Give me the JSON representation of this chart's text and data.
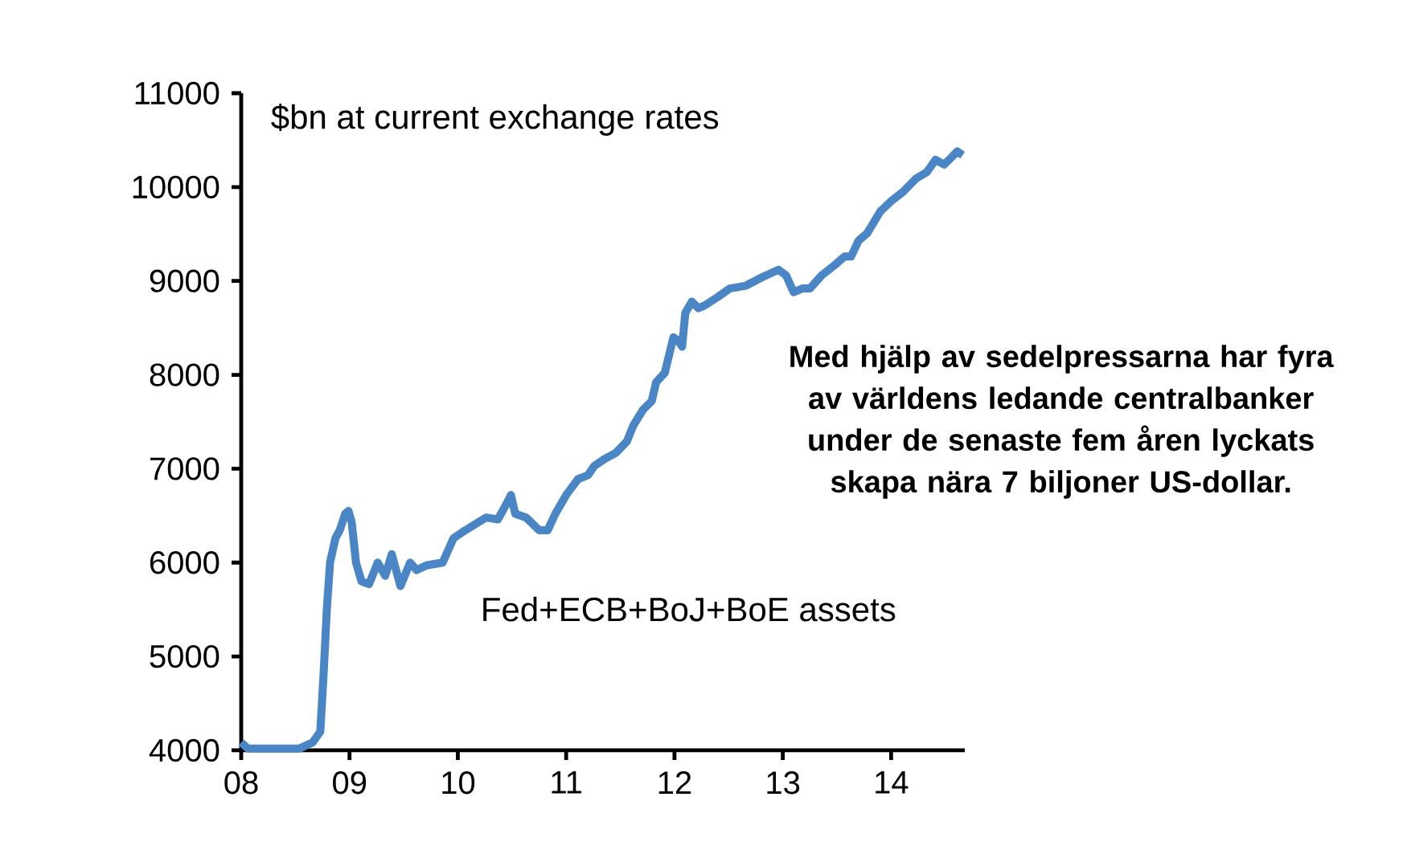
{
  "chart_data": {
    "type": "line",
    "annotations": [
      "$bn at current exchange rates",
      "Fed+ECB+BoJ+BoE assets",
      "Med hjälp av sedelpressarna har fyra av världens ledande centralbanker under de senaste fem åren lyckats skapa nära 7 biljoner US-dollar."
    ],
    "x": [
      2008.0,
      2008.06,
      2008.24,
      2008.54,
      2008.66,
      2008.73,
      2008.76,
      2008.79,
      2008.82,
      2008.87,
      2008.91,
      2008.96,
      2008.99,
      2009.02,
      2009.06,
      2009.11,
      2009.18,
      2009.26,
      2009.33,
      2009.39,
      2009.47,
      2009.56,
      2009.62,
      2009.71,
      2009.86,
      2009.96,
      2010.07,
      2010.19,
      2010.26,
      2010.37,
      2010.46,
      2010.49,
      2010.53,
      2010.63,
      2010.75,
      2010.83,
      2010.9,
      2011.0,
      2011.11,
      2011.2,
      2011.26,
      2011.35,
      2011.46,
      2011.56,
      2011.62,
      2011.71,
      2011.79,
      2011.83,
      2011.91,
      2011.99,
      2012.03,
      2012.07,
      2012.1,
      2012.16,
      2012.22,
      2012.28,
      2012.4,
      2012.51,
      2012.66,
      2012.81,
      2012.96,
      2013.03,
      2013.1,
      2013.18,
      2013.25,
      2013.36,
      2013.48,
      2013.57,
      2013.63,
      2013.7,
      2013.78,
      2013.9,
      2014.0,
      2014.11,
      2014.23,
      2014.33,
      2014.41,
      2014.49,
      2014.56,
      2014.61,
      2014.66
    ],
    "series": [
      {
        "color": "#4a86c5",
        "values": [
          4085,
          4020,
          4020,
          4020,
          4085,
          4200,
          4800,
          5490,
          6000,
          6260,
          6345,
          6520,
          6550,
          6430,
          6000,
          5800,
          5770,
          6000,
          5860,
          6090,
          5750,
          6000,
          5920,
          5970,
          6000,
          6260,
          6345,
          6430,
          6480,
          6460,
          6650,
          6720,
          6520,
          6480,
          6345,
          6345,
          6520,
          6720,
          6890,
          6930,
          7030,
          7100,
          7170,
          7290,
          7460,
          7630,
          7720,
          7920,
          8020,
          8400,
          8370,
          8300,
          8660,
          8780,
          8710,
          8740,
          8830,
          8920,
          8950,
          9040,
          9120,
          9060,
          8880,
          8920,
          8920,
          9060,
          9170,
          9260,
          9260,
          9430,
          9510,
          9740,
          9850,
          9950,
          10090,
          10160,
          10290,
          10240,
          10320,
          10380,
          10340
        ]
      }
    ],
    "xlim": [
      2008,
      2014.68
    ],
    "xticks": [
      {
        "value": 2008,
        "label": "08"
      },
      {
        "value": 2009,
        "label": "09"
      },
      {
        "value": 2010,
        "label": "10"
      },
      {
        "value": 2011,
        "label": "11"
      },
      {
        "value": 2012,
        "label": "12"
      },
      {
        "value": 2013,
        "label": "13"
      },
      {
        "value": 2014,
        "label": "14"
      }
    ],
    "ylim": [
      4000,
      11000
    ],
    "yticks": [
      4000,
      5000,
      6000,
      7000,
      8000,
      9000,
      10000,
      11000
    ],
    "grid": false,
    "marker": "none",
    "line_style": "solid"
  }
}
